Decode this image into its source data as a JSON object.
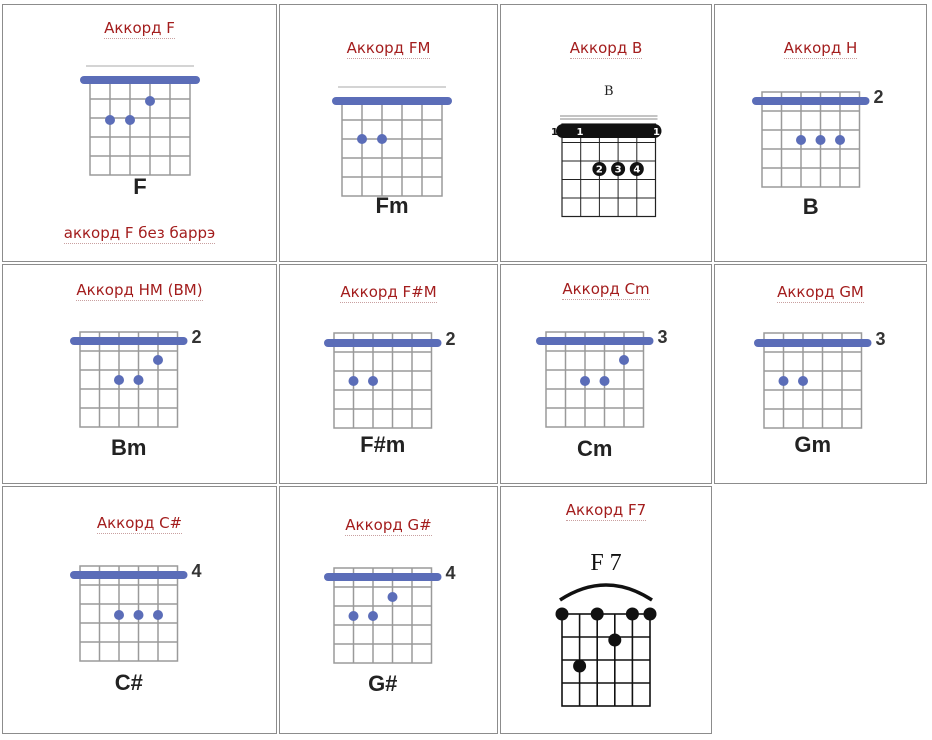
{
  "chords": [
    {
      "link": "Аккорд F",
      "name": "F",
      "fret": "",
      "extra_link": "аккорд F без баррэ",
      "style": "blue"
    },
    {
      "link": "Аккорд FM",
      "name": "Fm",
      "fret": "",
      "style": "blue"
    },
    {
      "link": "Аккорд B",
      "name": "B",
      "fret": "",
      "style": "black",
      "barre_labels": [
        "1",
        "1",
        "1"
      ],
      "finger_labels": [
        "2",
        "3",
        "4"
      ]
    },
    {
      "link": "Аккорд H",
      "name": "B",
      "fret": "2",
      "style": "blue"
    },
    {
      "link": "Аккорд HM (BM)",
      "name": "Bm",
      "fret": "2",
      "style": "blue"
    },
    {
      "link": "Аккорд F#M",
      "name": "F#m",
      "fret": "2",
      "style": "blue"
    },
    {
      "link": "Аккорд Cm",
      "name": "Cm",
      "fret": "3",
      "style": "blue"
    },
    {
      "link": "Аккорд GM",
      "name": "Gm",
      "fret": "3",
      "style": "blue"
    },
    {
      "link": "Аккорд C#",
      "name": "C#",
      "fret": "4",
      "style": "blue"
    },
    {
      "link": "Аккорд G#",
      "name": "G#",
      "fret": "4",
      "style": "blue"
    },
    {
      "link": "Аккорд F7",
      "name": "F 7",
      "fret": "",
      "style": "classic"
    }
  ],
  "colors": {
    "link": "#a31d1d",
    "barre": "#5b6db8",
    "dot": "#5b6db8",
    "grid": "#9a9a9a",
    "border": "#8c8c8c"
  }
}
